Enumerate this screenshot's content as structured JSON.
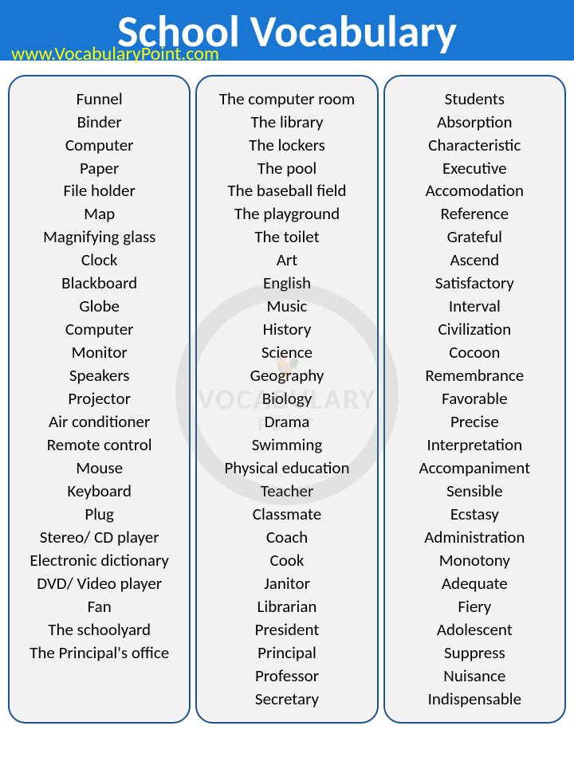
{
  "header": {
    "title": "School Vocabulary",
    "url": "www.VocabularyPoint.com",
    "bg_color": "#1976d2",
    "title_color": "#ffffff",
    "url_color": "#ffff00"
  },
  "columns_style": {
    "border_color": "#1a5490",
    "bg_color": "#f2f2f2",
    "text_color": "#000000",
    "font_size": 21
  },
  "columns": [
    {
      "words": [
        "Funnel",
        "Binder",
        "Computer",
        "Paper",
        "File holder",
        "Map",
        "Magnifying glass",
        "Clock",
        "Blackboard",
        "Globe",
        "Computer",
        "Monitor",
        "Speakers",
        "Projector",
        "Air conditioner",
        "Remote control",
        "Mouse",
        "Keyboard",
        "Plug",
        "Stereo/ CD player",
        "Electronic dictionary",
        "DVD/ Video player",
        "Fan",
        "The schoolyard",
        "The Principal's office"
      ]
    },
    {
      "words": [
        "The computer room",
        "The library",
        "The lockers",
        "The pool",
        "The baseball field",
        "The playground",
        "The toilet",
        "Art",
        "English",
        "Music",
        "History",
        "Science",
        "Geography",
        "Biology",
        "Drama",
        "Swimming",
        "Physical education",
        "Teacher",
        "Classmate",
        "Coach",
        "Cook",
        "Janitor",
        "Librarian",
        "President",
        "Principal",
        "Professor",
        "Secretary"
      ]
    },
    {
      "words": [
        "Students",
        "Absorption",
        "Characteristic",
        "Executive",
        "Accomodation",
        "Reference",
        "Grateful",
        "Ascend",
        "Satisfactory",
        "Interval",
        "Civilization",
        "Cocoon",
        "Remembrance",
        "Favorable",
        "Precise",
        "Interpretation",
        "Accompaniment",
        "Sensible",
        "Ecstasy",
        "Administration",
        "Monotony",
        "Adequate",
        "Fiery",
        "Adolescent",
        "Suppress",
        "Nuisance",
        "Indispensable"
      ]
    }
  ],
  "watermark": {
    "text_main": "VOCABULARY",
    "text_sub": "POINT"
  }
}
